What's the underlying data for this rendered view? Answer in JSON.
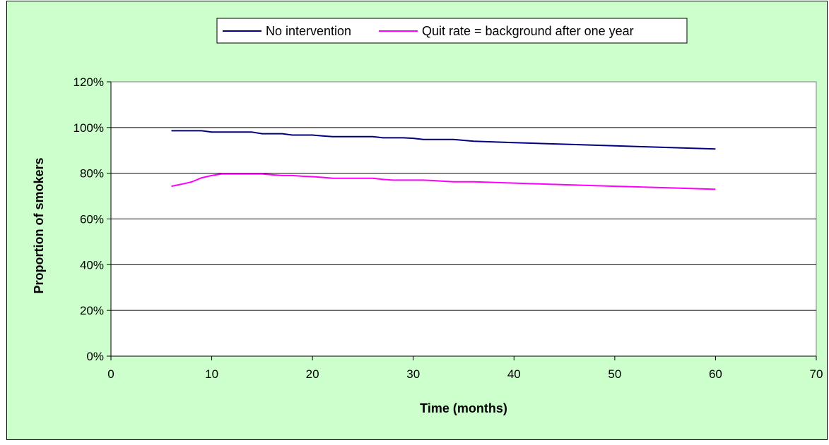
{
  "chart_data": {
    "type": "line",
    "title": "",
    "xlabel": "Time (months)",
    "ylabel": "Proportion of smokers",
    "xlim": [
      0,
      70
    ],
    "ylim": [
      0,
      1.2
    ],
    "x_ticks": [
      "0",
      "10",
      "20",
      "30",
      "40",
      "50",
      "60",
      "70"
    ],
    "y_ticks": [
      "0%",
      "20%",
      "40%",
      "60%",
      "80%",
      "100%",
      "120%"
    ],
    "grid": "horizontal",
    "legend_position": "top",
    "plot_area_color": "#ffffff",
    "background_color": "#ccffcc",
    "series": [
      {
        "name": "No intervention",
        "color": "#000080",
        "x": [
          6,
          7,
          8,
          9,
          10,
          11,
          12,
          13,
          14,
          15,
          16,
          17,
          18,
          19,
          20,
          21,
          22,
          23,
          24,
          25,
          26,
          27,
          28,
          29,
          30,
          31,
          32,
          33,
          34,
          36,
          40,
          45,
          50,
          55,
          60
        ],
        "values": [
          0.986,
          0.986,
          0.986,
          0.986,
          0.98,
          0.98,
          0.98,
          0.98,
          0.98,
          0.973,
          0.973,
          0.973,
          0.967,
          0.967,
          0.967,
          0.963,
          0.96,
          0.96,
          0.96,
          0.96,
          0.96,
          0.955,
          0.955,
          0.955,
          0.953,
          0.948,
          0.948,
          0.948,
          0.948,
          0.94,
          0.934,
          0.927,
          0.92,
          0.913,
          0.906
        ]
      },
      {
        "name": "Quit rate = background after one year",
        "color": "#ff00ff",
        "x": [
          6,
          7,
          8,
          9,
          10,
          11,
          12,
          13,
          14,
          15,
          16,
          17,
          18,
          19,
          20,
          21,
          22,
          23,
          24,
          25,
          26,
          27,
          28,
          29,
          30,
          31,
          32,
          33,
          34,
          36,
          40,
          45,
          50,
          55,
          60
        ],
        "values": [
          0.743,
          0.752,
          0.762,
          0.78,
          0.79,
          0.797,
          0.797,
          0.797,
          0.797,
          0.797,
          0.793,
          0.79,
          0.79,
          0.787,
          0.785,
          0.782,
          0.778,
          0.778,
          0.778,
          0.778,
          0.778,
          0.773,
          0.77,
          0.77,
          0.77,
          0.77,
          0.768,
          0.765,
          0.763,
          0.763,
          0.757,
          0.75,
          0.743,
          0.737,
          0.73
        ]
      }
    ]
  }
}
